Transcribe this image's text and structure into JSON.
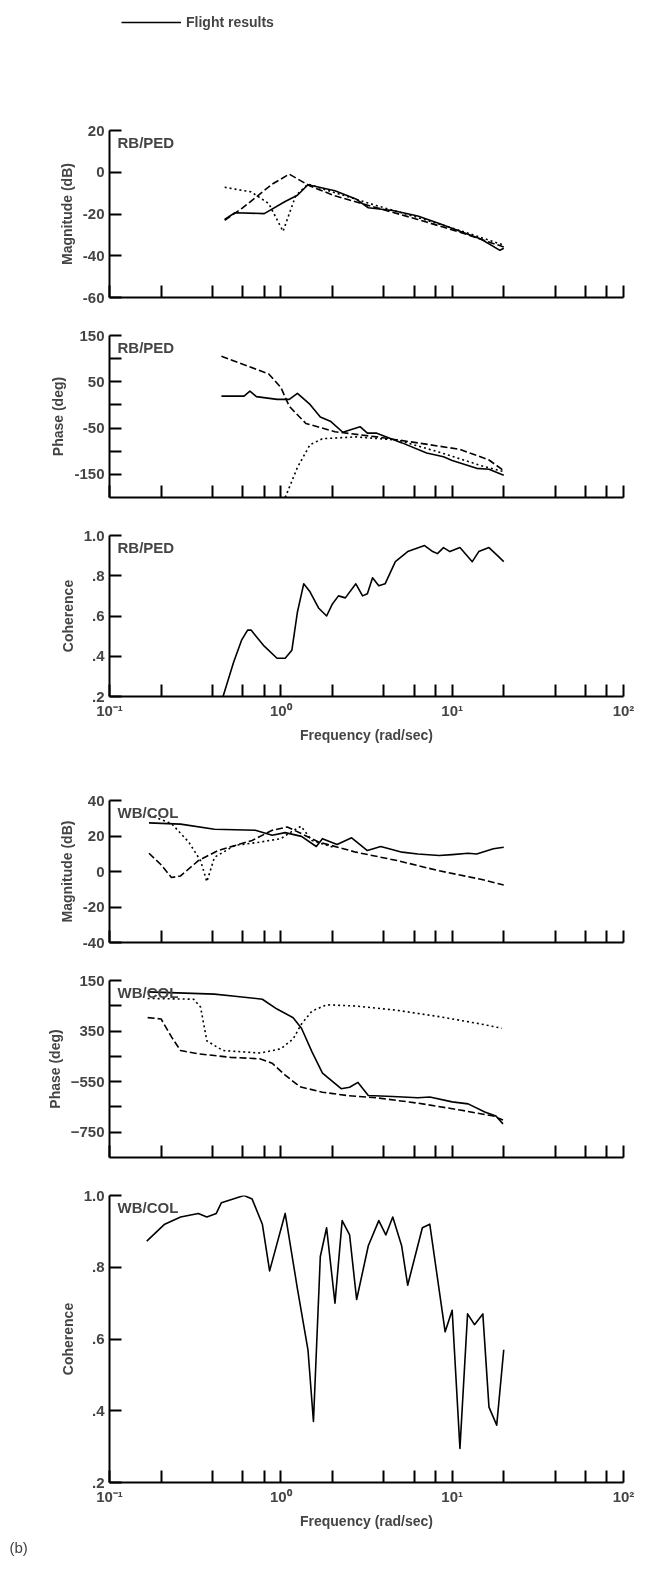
{
  "chart_data": [
    {
      "type": "line",
      "ylabel": "Magnitude (dB)",
      "legend": "top",
      "log": "x",
      "grid": false,
      "tick_labels": "y",
      "annotations": [
        "RB/PED"
      ],
      "xlim": [
        0.1,
        100
      ],
      "xticks": [
        {
          "value": 0.1,
          "label": null
        },
        {
          "value": 0.2,
          "label": null
        },
        {
          "value": 0.4,
          "label": null
        },
        {
          "value": 0.6,
          "label": null
        },
        {
          "value": 0.8,
          "label": null
        },
        {
          "value": 1,
          "label": null
        },
        {
          "value": 2,
          "label": null
        },
        {
          "value": 4,
          "label": null
        },
        {
          "value": 6,
          "label": null
        },
        {
          "value": 8,
          "label": null
        },
        {
          "value": 10,
          "label": null
        },
        {
          "value": 20,
          "label": null
        },
        {
          "value": 40,
          "label": null
        },
        {
          "value": 60,
          "label": null
        },
        {
          "value": 80,
          "label": null
        },
        {
          "value": 100,
          "label": null
        }
      ],
      "ylim": [
        -60,
        20
      ],
      "yticks": [
        20,
        0,
        -20,
        -40,
        -60
      ],
      "series": [
        {
          "name": "Flight results",
          "color": "#000000",
          "line_style": "solid",
          "x": [
            0.47,
            0.54,
            0.8,
            1.06,
            1.25,
            1.44,
            2.07,
            2.74,
            3.24,
            4.5,
            6.3,
            8.4,
            11.1,
            14.7,
            19,
            20
          ],
          "values": [
            -22.6,
            -19.4,
            -19.8,
            -14,
            -11,
            -6,
            -8.9,
            -12.8,
            -17,
            -18.3,
            -21,
            -24.5,
            -28.3,
            -32,
            -37.4,
            -36.4
          ]
        },
        {
          "color": "#000000",
          "line_style": "dashed",
          "x": [
            0.47,
            0.6,
            0.89,
            1.12,
            1.48,
            2.07,
            3.63,
            6.3,
            11.1,
            20
          ],
          "values": [
            -23,
            -17,
            -5.7,
            -0.9,
            -6.6,
            -11.3,
            -17,
            -22.6,
            -28.7,
            -35.8
          ]
        },
        {
          "color": "#000000",
          "line_style": "dotted",
          "x": [
            0.47,
            0.67,
            0.85,
            1.03,
            1.22,
            1.44,
            2.07,
            3.63,
            6.3,
            11.1,
            20
          ],
          "values": [
            -7.2,
            -9.4,
            -15,
            -28.3,
            -11.3,
            -5.7,
            -9.8,
            -16,
            -21.7,
            -27.9,
            -34.9
          ]
        }
      ]
    },
    {
      "type": "line",
      "ylabel": "Phase (deg)",
      "log": "x",
      "grid": false,
      "tick_labels": "y",
      "annotations": [
        "RB/PED"
      ],
      "xlim": [
        0.1,
        100
      ],
      "xticks": [
        {
          "value": 0.1,
          "label": null
        },
        {
          "value": 0.2,
          "label": null
        },
        {
          "value": 0.4,
          "label": null
        },
        {
          "value": 0.6,
          "label": null
        },
        {
          "value": 0.8,
          "label": null
        },
        {
          "value": 1,
          "label": null
        },
        {
          "value": 2,
          "label": null
        },
        {
          "value": 4,
          "label": null
        },
        {
          "value": 6,
          "label": null
        },
        {
          "value": 8,
          "label": null
        },
        {
          "value": 10,
          "label": null
        },
        {
          "value": 20,
          "label": null
        },
        {
          "value": 40,
          "label": null
        },
        {
          "value": 60,
          "label": null
        },
        {
          "value": 80,
          "label": null
        },
        {
          "value": 100,
          "label": null
        }
      ],
      "ylim": [
        -200,
        150
      ],
      "yticks": [
        150,
        {
          "value": 100,
          "label": null
        },
        50,
        {
          "value": 0,
          "label": null
        },
        -50,
        {
          "value": -100,
          "label": null
        },
        -150
      ],
      "series": [
        {
          "color": "#000000",
          "line_style": "solid",
          "x": [
            0.45,
            0.61,
            0.66,
            0.72,
            0.95,
            1.12,
            1.25,
            1.48,
            1.7,
            1.96,
            2.3,
            2.9,
            3.2,
            3.63,
            5.1,
            7.1,
            8.9,
            10,
            13.9,
            16.4,
            20
          ],
          "values": [
            19,
            19,
            30,
            18,
            12,
            12,
            25,
            1,
            -26,
            -36,
            -59,
            -47,
            -61,
            -61,
            -82,
            -104,
            -112,
            -120,
            -137,
            -139,
            -152
          ]
        },
        {
          "color": "#000000",
          "line_style": "dashed",
          "x": [
            0.45,
            0.64,
            0.85,
            1,
            1.12,
            1.4,
            2.07,
            3.63,
            6.3,
            11.1,
            16.4,
            20
          ],
          "values": [
            105,
            84,
            67,
            38,
            -3,
            -40,
            -58,
            -69,
            -82,
            -96,
            -119,
            -142
          ]
        },
        {
          "color": "#000000",
          "line_style": "dotted",
          "x": [
            1.06,
            1.25,
            1.48,
            1.75,
            2.74,
            4.8,
            8.4,
            14.7,
            20
          ],
          "values": [
            -200,
            -135,
            -86,
            -73,
            -69,
            -76,
            -102,
            -131,
            -144
          ]
        }
      ]
    },
    {
      "type": "line",
      "ylabel": "Coherence",
      "xlabel": "Frequency (rad/sec)",
      "log": "x",
      "grid": false,
      "annotations": [
        "RB/PED"
      ],
      "xlim": [
        0.1,
        100
      ],
      "xticks": [
        {
          "value": 0.1,
          "label": "10⁻¹"
        },
        {
          "value": 0.2,
          "label": null
        },
        {
          "value": 0.4,
          "label": null
        },
        {
          "value": 0.6,
          "label": null
        },
        {
          "value": 0.8,
          "label": null
        },
        {
          "value": 1,
          "label": "10⁰"
        },
        {
          "value": 2,
          "label": null
        },
        {
          "value": 4,
          "label": null
        },
        {
          "value": 6,
          "label": null
        },
        {
          "value": 8,
          "label": null
        },
        {
          "value": 10,
          "label": "10¹"
        },
        {
          "value": 20,
          "label": null
        },
        {
          "value": 40,
          "label": null
        },
        {
          "value": 60,
          "label": null
        },
        {
          "value": 80,
          "label": null
        },
        {
          "value": 100,
          "label": "10²"
        }
      ],
      "ylim": [
        0.2,
        1.0
      ],
      "yticks": [
        {
          "value": 0.2,
          "label": ".2"
        },
        {
          "value": 0.4,
          "label": ".4"
        },
        {
          "value": 0.6,
          "label": ".6"
        },
        {
          "value": 0.8,
          "label": ".8"
        },
        {
          "value": 1.0,
          "label": "1.0"
        }
      ],
      "series": [
        {
          "color": "#000000",
          "line_style": "solid",
          "x": [
            0.46,
            0.53,
            0.59,
            0.64,
            0.67,
            0.8,
            0.95,
            1.06,
            1.16,
            1.25,
            1.36,
            1.48,
            1.66,
            1.85,
            2.0,
            2.17,
            2.38,
            2.74,
            3.0,
            3.2,
            3.43,
            3.73,
            4.06,
            4.66,
            5.5,
            6.9,
            7.7,
            8.2,
            8.9,
            9.7,
            11.1,
            13.1,
            14.3,
            16.4,
            18.4,
            20
          ],
          "values": [
            0.2,
            0.37,
            0.48,
            0.53,
            0.53,
            0.45,
            0.39,
            0.39,
            0.43,
            0.62,
            0.76,
            0.72,
            0.64,
            0.6,
            0.66,
            0.7,
            0.69,
            0.76,
            0.7,
            0.71,
            0.79,
            0.75,
            0.76,
            0.87,
            0.92,
            0.95,
            0.92,
            0.91,
            0.94,
            0.92,
            0.94,
            0.87,
            0.92,
            0.94,
            0.9,
            0.87
          ]
        }
      ]
    },
    {
      "type": "line",
      "ylabel": "Magnitude (dB)",
      "log": "x",
      "grid": false,
      "tick_labels": "y",
      "annotations": [
        "WB/COL"
      ],
      "xlim": [
        0.1,
        100
      ],
      "xticks": [
        {
          "value": 0.1,
          "label": null
        },
        {
          "value": 0.2,
          "label": null
        },
        {
          "value": 0.4,
          "label": null
        },
        {
          "value": 0.6,
          "label": null
        },
        {
          "value": 0.8,
          "label": null
        },
        {
          "value": 1,
          "label": null
        },
        {
          "value": 2,
          "label": null
        },
        {
          "value": 4,
          "label": null
        },
        {
          "value": 6,
          "label": null
        },
        {
          "value": 8,
          "label": null
        },
        {
          "value": 10,
          "label": null
        },
        {
          "value": 20,
          "label": null
        },
        {
          "value": 40,
          "label": null
        },
        {
          "value": 60,
          "label": null
        },
        {
          "value": 80,
          "label": null
        },
        {
          "value": 100,
          "label": null
        }
      ],
      "ylim": [
        -40,
        40
      ],
      "yticks": [
        40,
        20,
        0,
        -20,
        -40
      ],
      "series": [
        {
          "color": "#000000",
          "line_style": "solid",
          "x": [
            0.17,
            0.26,
            0.41,
            0.71,
            0.89,
            1.06,
            1.32,
            1.61,
            1.75,
            2.13,
            2.59,
            3.2,
            3.83,
            5.1,
            6.3,
            8.4,
            10,
            12.4,
            13.9,
            17.4,
            20
          ],
          "values": [
            27.4,
            26.7,
            23.8,
            23.2,
            20.4,
            21.9,
            19.8,
            14.1,
            18.5,
            15.2,
            19,
            11.8,
            14.1,
            10.9,
            9.9,
            9,
            9.5,
            10.3,
            9.9,
            12.8,
            13.7
          ]
        },
        {
          "color": "#000000",
          "line_style": "dashed",
          "x": [
            0.17,
            0.2,
            0.23,
            0.26,
            0.33,
            0.43,
            0.68,
            0.89,
            1.09,
            1.32,
            1.66,
            2.74,
            4.8,
            8.4,
            14.7,
            20
          ],
          "values": [
            10.3,
            3.8,
            -3.4,
            -2.5,
            6.1,
            11.8,
            17.5,
            23.2,
            25.1,
            21.3,
            16.6,
            10.9,
            6.1,
            0.4,
            -4.4,
            -7.6
          ]
        },
        {
          "color": "#000000",
          "line_style": "dotted",
          "x": [
            0.17,
            0.23,
            0.29,
            0.34,
            0.37,
            0.41,
            0.54,
            0.76,
            1,
            1.15,
            1.31,
            1.52,
            2.07
          ],
          "values": [
            31.8,
            27,
            16.6,
            6.1,
            -5.7,
            8,
            14.7,
            16.6,
            18.5,
            22.3,
            25.5,
            17.5,
            13.3
          ]
        }
      ]
    },
    {
      "type": "line",
      "ylabel": "Phase (deg)",
      "log": "x",
      "grid": false,
      "tick_labels": "y",
      "annotations": [
        "WB/COL"
      ],
      "xlim": [
        0.1,
        100
      ],
      "xticks": [
        {
          "value": 0.1,
          "label": null
        },
        {
          "value": 0.2,
          "label": null
        },
        {
          "value": 0.4,
          "label": null
        },
        {
          "value": 0.6,
          "label": null
        },
        {
          "value": 0.8,
          "label": null
        },
        {
          "value": 1,
          "label": null
        },
        {
          "value": 2,
          "label": null
        },
        {
          "value": 4,
          "label": null
        },
        {
          "value": 6,
          "label": null
        },
        {
          "value": 8,
          "label": null
        },
        {
          "value": 10,
          "label": null
        },
        {
          "value": 20,
          "label": null
        },
        {
          "value": 40,
          "label": null
        },
        {
          "value": 60,
          "label": null
        },
        {
          "value": 80,
          "label": null
        },
        {
          "value": 100,
          "label": null
        }
      ],
      "ylim": [
        -850,
        -150
      ],
      "yticks": [
        {
          "value": -150,
          "label": "150"
        },
        {
          "value": -250,
          "label": null
        },
        {
          "value": -350,
          "label": "350"
        },
        {
          "value": -450,
          "label": null
        },
        {
          "value": -550,
          "label": "−550"
        },
        {
          "value": -650,
          "label": null
        },
        {
          "value": -750,
          "label": "−750"
        }
      ],
      "series": [
        {
          "color": "#000000",
          "line_style": "solid",
          "x": [
            0.167,
            0.41,
            0.54,
            0.78,
            0.95,
            1.18,
            1.32,
            1.52,
            1.75,
            2.25,
            2.52,
            2.82,
            3.24,
            4.5,
            6.3,
            7.4,
            10,
            12.4,
            15.5,
            18,
            19.8
          ],
          "values": [
            -195,
            -204,
            -212,
            -224,
            -263,
            -297,
            -339,
            -432,
            -516,
            -578,
            -572,
            -553,
            -605,
            -609,
            -614,
            -611,
            -630,
            -638,
            -670,
            -686,
            -717
          ]
        },
        {
          "color": "#000000",
          "line_style": "dashed",
          "x": [
            0.167,
            0.2,
            0.23,
            0.26,
            0.33,
            0.51,
            0.76,
            0.89,
            1.06,
            1.29,
            1.75,
            2.45,
            3.63,
            6.3,
            11.1,
            17.4,
            19.8
          ],
          "values": [
            -297,
            -302,
            -373,
            -427,
            -440,
            -454,
            -460,
            -477,
            -524,
            -570,
            -592,
            -605,
            -614,
            -635,
            -662,
            -686,
            -702
          ]
        },
        {
          "color": "#000000",
          "line_style": "dotted",
          "x": [
            0.167,
            0.31,
            0.34,
            0.37,
            0.46,
            0.76,
            1.0,
            1.18,
            1.32,
            1.52,
            1.85,
            2.74,
            4.8,
            8.4,
            14.7,
            19.5
          ],
          "values": [
            -221,
            -224,
            -255,
            -389,
            -427,
            -437,
            -420,
            -381,
            -322,
            -271,
            -246,
            -251,
            -268,
            -293,
            -322,
            -339
          ]
        }
      ]
    },
    {
      "type": "line",
      "ylabel": "Coherence",
      "xlabel": "Frequency (rad/sec)",
      "log": "x",
      "grid": false,
      "annotations": [
        "WB/COL",
        "(b)"
      ],
      "xlim": [
        0.1,
        100
      ],
      "xticks": [
        {
          "value": 0.1,
          "label": "10⁻¹"
        },
        {
          "value": 0.2,
          "label": null
        },
        {
          "value": 0.4,
          "label": null
        },
        {
          "value": 0.6,
          "label": null
        },
        {
          "value": 0.8,
          "label": null
        },
        {
          "value": 1,
          "label": "10⁰"
        },
        {
          "value": 2,
          "label": null
        },
        {
          "value": 4,
          "label": null
        },
        {
          "value": 6,
          "label": null
        },
        {
          "value": 8,
          "label": null
        },
        {
          "value": 10,
          "label": "10¹"
        },
        {
          "value": 20,
          "label": null
        },
        {
          "value": 40,
          "label": null
        },
        {
          "value": 60,
          "label": null
        },
        {
          "value": 80,
          "label": null
        },
        {
          "value": 100,
          "label": "10²"
        }
      ],
      "ylim": [
        0.2,
        1.0
      ],
      "yticks": [
        {
          "value": 0.2,
          "label": ".2"
        },
        {
          "value": 0.4,
          "label": ".4"
        },
        {
          "value": 0.6,
          "label": ".6"
        },
        {
          "value": 0.8,
          "label": ".8"
        },
        {
          "value": 1.0,
          "label": "1.0"
        }
      ],
      "series": [
        {
          "color": "#000000",
          "line_style": "solid",
          "x": [
            0.165,
            0.21,
            0.26,
            0.33,
            0.37,
            0.42,
            0.45,
            0.61,
            0.68,
            0.78,
            0.86,
            1.06,
            1.25,
            1.44,
            1.55,
            1.7,
            1.85,
            2.07,
            2.28,
            2.52,
            2.77,
            3.24,
            3.73,
            4.1,
            4.5,
            5.07,
            5.5,
            6.7,
            7.4,
            9.1,
            10,
            11.1,
            12.3,
            13.5,
            15.1,
            16.4,
            18.2,
            20
          ],
          "values": [
            0.873,
            0.92,
            0.94,
            0.95,
            0.94,
            0.95,
            0.98,
            1.0,
            0.99,
            0.92,
            0.79,
            0.95,
            0.74,
            0.57,
            0.37,
            0.83,
            0.91,
            0.7,
            0.93,
            0.89,
            0.71,
            0.86,
            0.93,
            0.89,
            0.94,
            0.86,
            0.75,
            0.91,
            0.92,
            0.62,
            0.68,
            0.295,
            0.67,
            0.64,
            0.67,
            0.41,
            0.36,
            0.57
          ]
        }
      ]
    }
  ]
}
